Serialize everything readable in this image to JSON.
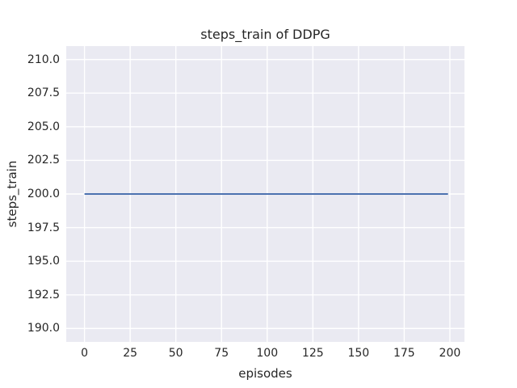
{
  "chart_data": {
    "type": "line",
    "title": "steps_train of DDPG",
    "xlabel": "episodes",
    "ylabel": "steps_train",
    "x_ticks": [
      0,
      25,
      50,
      75,
      100,
      125,
      150,
      175,
      200
    ],
    "x_tick_labels": [
      "0",
      "25",
      "50",
      "75",
      "100",
      "125",
      "150",
      "175",
      "200"
    ],
    "y_ticks": [
      190.0,
      192.5,
      195.0,
      197.5,
      200.0,
      202.5,
      205.0,
      207.5,
      210.0
    ],
    "y_tick_labels": [
      "190.0",
      "192.5",
      "195.0",
      "197.5",
      "200.0",
      "202.5",
      "205.0",
      "207.5",
      "210.0"
    ],
    "xlim": [
      -10,
      208
    ],
    "ylim": [
      189,
      211
    ],
    "grid": true,
    "legend": false,
    "series": [
      {
        "name": "steps_train",
        "constant_value": 200,
        "x": [
          0,
          199
        ],
        "y": [
          200,
          200
        ],
        "color": "#4c72b0",
        "line_width": 2
      }
    ],
    "colors": {
      "figure_background": "#ffffff",
      "plot_background": "#eaeaf2",
      "grid_color": "#ffffff",
      "text_color": "#262626"
    }
  }
}
